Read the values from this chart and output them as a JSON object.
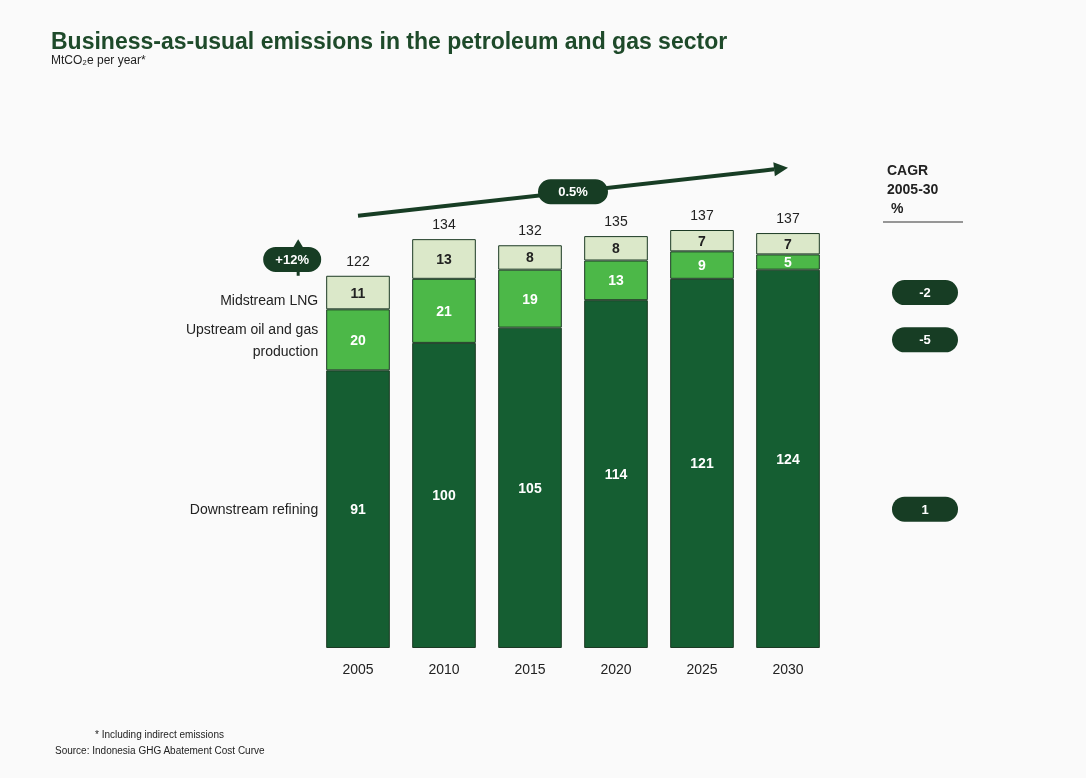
{
  "chart_data": {
    "type": "bar",
    "title": "Business-as-usual emissions in the petroleum and gas sector",
    "subtitle": "MtCO₂e per year*",
    "categories": [
      "2005",
      "2010",
      "2015",
      "2020",
      "2025",
      "2030"
    ],
    "stacked": true,
    "data_labels": true,
    "series": [
      {
        "name": "Downstream refining",
        "color": "#155e32",
        "values": [
          91,
          100,
          105,
          114,
          121,
          124
        ]
      },
      {
        "name": "Upstream oil and gas production",
        "color": "#4cb848",
        "values": [
          20,
          21,
          19,
          13,
          9,
          5
        ]
      },
      {
        "name": "Midstream LNG",
        "color": "#dbe8c9",
        "values": [
          11,
          13,
          8,
          8,
          7,
          7
        ]
      }
    ],
    "totals": [
      "122",
      "134",
      "132",
      "135",
      "137",
      "137"
    ],
    "annotations": [
      "CAGR 2005-30 %",
      "-2",
      "-5",
      "1",
      "0.5%",
      "+12%",
      "* Including indirect emissions",
      "Source: Indonesia GHG Abatement Cost Curve"
    ]
  }
}
